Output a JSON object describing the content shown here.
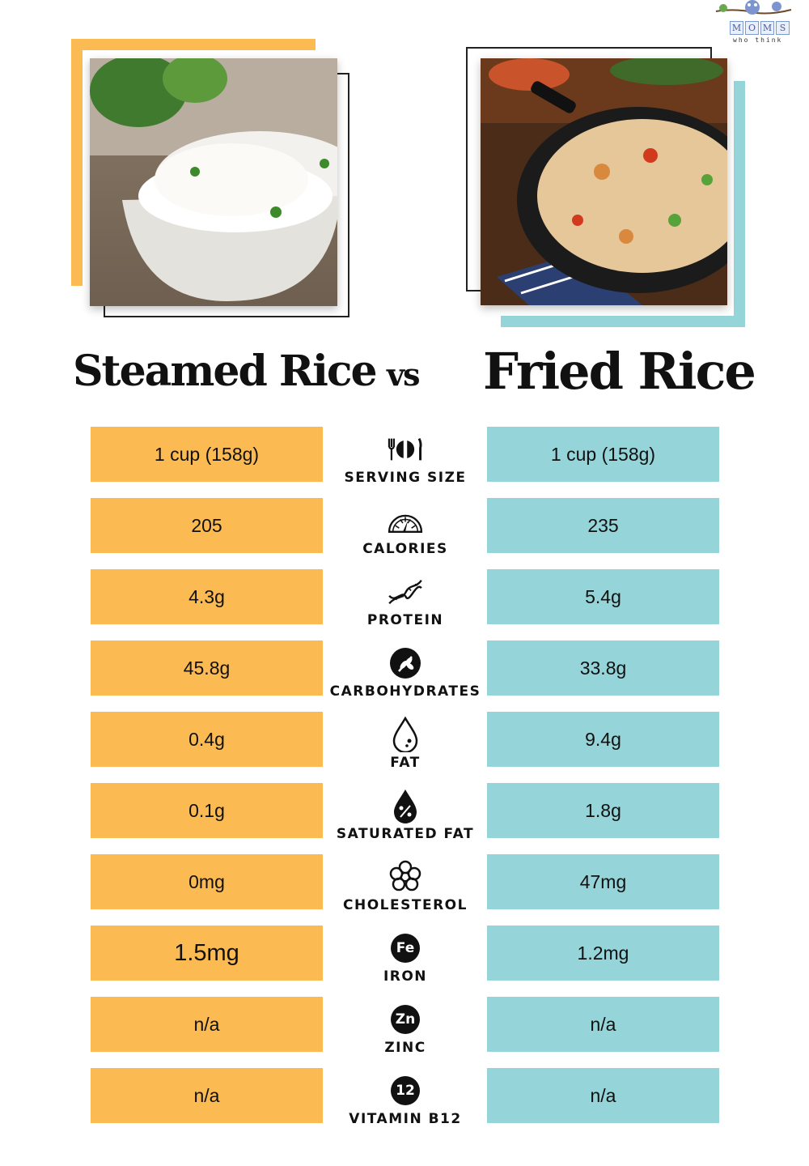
{
  "logo": {
    "letters": [
      "M",
      "O",
      "M",
      "S"
    ],
    "subtext": "who think"
  },
  "titles": {
    "left": "Steamed Rice",
    "vs": "vs",
    "right": "Fried Rice"
  },
  "photos": {
    "left": "steamed-rice-bowl",
    "right": "fried-rice-pan"
  },
  "colors": {
    "left": "#fbbb52",
    "right": "#95d4d8"
  },
  "rows": [
    {
      "label": "SERVING SIZE",
      "icon": "cutlery-plate-icon",
      "left": "1 cup (158g)",
      "right": "1 cup (158g)"
    },
    {
      "label": "CALORIES",
      "icon": "gauge-icon",
      "left": "205",
      "right": "235"
    },
    {
      "label": "PROTEIN",
      "icon": "dna-helix-icon",
      "left": "4.3g",
      "right": "5.4g"
    },
    {
      "label": "CARBOHYDRATES",
      "icon": "wheat-icon",
      "left": "45.8g",
      "right": "33.8g"
    },
    {
      "label": "FAT",
      "icon": "droplet-icon",
      "left": "0.4g",
      "right": "9.4g"
    },
    {
      "label": "SATURATED FAT",
      "icon": "percent-droplet-icon",
      "left": "0.1g",
      "right": "1.8g"
    },
    {
      "label": "CHOLESTEROL",
      "icon": "cholesterol-icon",
      "left": "0mg",
      "right": "47mg"
    },
    {
      "label": "IRON",
      "icon": "fe-badge-icon",
      "badge": "Fe",
      "left": "1.5mg",
      "right": "1.2mg"
    },
    {
      "label": "ZINC",
      "icon": "zn-badge-icon",
      "badge": "Zn",
      "left": "n/a",
      "right": "n/a"
    },
    {
      "label": "VITAMIN B12",
      "icon": "b12-badge-icon",
      "badge": "12",
      "left": "n/a",
      "right": "n/a"
    }
  ]
}
